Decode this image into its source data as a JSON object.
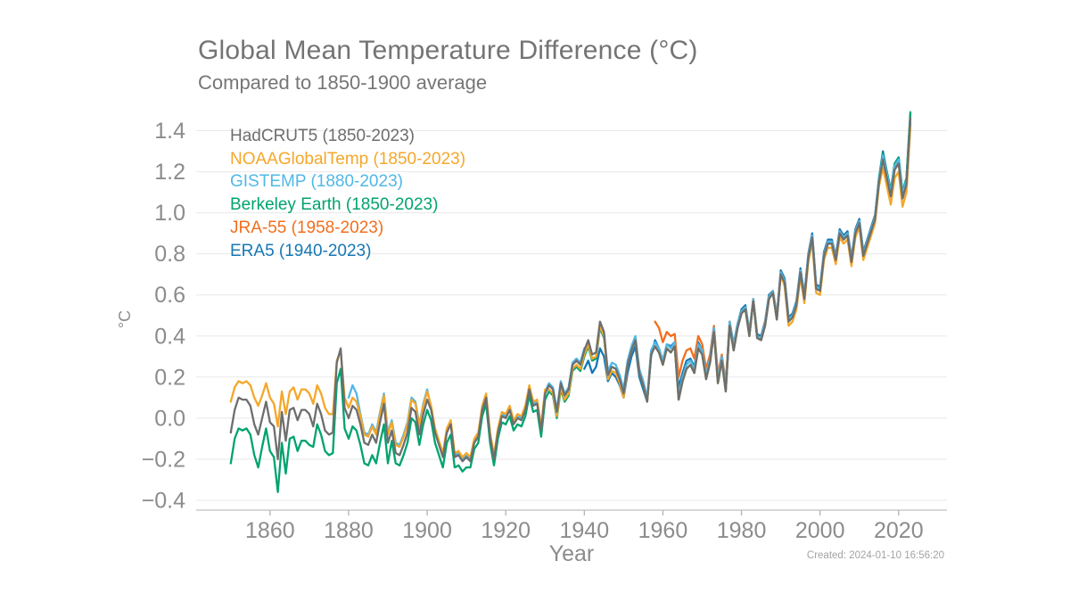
{
  "header": {
    "title": "Global Mean Temperature Difference (°C)",
    "subtitle": "Compared to 1850-1900 average"
  },
  "footer": {
    "created": "Created: 2024-01-10 16:56:20"
  },
  "colors": {
    "background": "#ffffff",
    "grid": "#e8e8e8",
    "axis_line": "#cccccc",
    "tick_mark": "#b3b3b3",
    "tick_label": "#8c8c8c",
    "title_text": "#747474",
    "created_text": "#a3a3a3"
  },
  "chart_data": {
    "type": "line",
    "title": "Global Mean Temperature Difference (°C)",
    "subtitle": "Compared to 1850-1900 average",
    "xlabel": "Year",
    "ylabel": "°C",
    "grid": true,
    "legend_position": "top-left",
    "xlim": [
      1841.2,
      2032.3
    ],
    "ylim": [
      -0.448,
      1.55
    ],
    "x_ticks": [
      1860,
      1880,
      1900,
      1920,
      1940,
      1960,
      1980,
      2000,
      2020
    ],
    "y_ticks": [
      1.4,
      1.2,
      1.0,
      0.8,
      0.6,
      0.4,
      0.2,
      0.0,
      -0.2,
      -0.4
    ],
    "y_tick_labels": [
      "1.4",
      "1.2",
      "1.0",
      "0.8",
      "0.6",
      "0.4",
      "0.2",
      "0.0",
      "−0.2",
      "−0.4"
    ],
    "series": [
      {
        "name": "HadCRUT5",
        "label": "HadCRUT5 (1850-2023)",
        "color": "#6E6E6E",
        "start_year": 1850,
        "values": [
          -0.07,
          0.04,
          0.1,
          0.09,
          0.09,
          0.06,
          -0.03,
          -0.08,
          0.0,
          0.08,
          -0.02,
          -0.04,
          -0.2,
          0.03,
          -0.11,
          0.04,
          0.05,
          -0.01,
          0.04,
          0.04,
          0.02,
          -0.04,
          0.07,
          0.02,
          -0.06,
          -0.08,
          -0.07,
          0.27,
          0.34,
          0.05,
          0.0,
          0.06,
          0.04,
          -0.03,
          -0.12,
          -0.13,
          -0.08,
          -0.12,
          -0.02,
          0.07,
          -0.12,
          -0.06,
          -0.17,
          -0.18,
          -0.13,
          -0.07,
          0.05,
          0.03,
          -0.08,
          0.02,
          0.09,
          0.04,
          -0.07,
          -0.13,
          -0.19,
          -0.07,
          -0.03,
          -0.19,
          -0.18,
          -0.21,
          -0.19,
          -0.21,
          -0.12,
          -0.09,
          0.04,
          0.1,
          -0.09,
          -0.2,
          -0.07,
          0.01,
          0.0,
          0.04,
          -0.03,
          0.0,
          -0.01,
          0.04,
          0.14,
          0.06,
          0.07,
          -0.06,
          0.12,
          0.16,
          0.14,
          0.03,
          0.17,
          0.11,
          0.14,
          0.26,
          0.28,
          0.26,
          0.33,
          0.38,
          0.31,
          0.32,
          0.47,
          0.42,
          0.21,
          0.25,
          0.24,
          0.19,
          0.12,
          0.26,
          0.33,
          0.38,
          0.22,
          0.16,
          0.08,
          0.31,
          0.35,
          0.32,
          0.26,
          0.34,
          0.32,
          0.35,
          0.09,
          0.18,
          0.24,
          0.26,
          0.22,
          0.34,
          0.31,
          0.19,
          0.27,
          0.42,
          0.17,
          0.28,
          0.13,
          0.45,
          0.33,
          0.44,
          0.51,
          0.53,
          0.4,
          0.57,
          0.39,
          0.38,
          0.45,
          0.58,
          0.61,
          0.48,
          0.7,
          0.66,
          0.47,
          0.49,
          0.55,
          0.71,
          0.58,
          0.78,
          0.88,
          0.63,
          0.62,
          0.79,
          0.85,
          0.85,
          0.77,
          0.9,
          0.87,
          0.89,
          0.76,
          0.9,
          0.95,
          0.79,
          0.85,
          0.91,
          0.97,
          1.15,
          1.26,
          1.17,
          1.08,
          1.21,
          1.24,
          1.07,
          1.14,
          1.46
        ]
      },
      {
        "name": "NOAAGlobalTemp",
        "label": "NOAAGlobalTemp (1850-2023)",
        "color": "#F4A72A",
        "start_year": 1850,
        "values": [
          0.08,
          0.15,
          0.18,
          0.17,
          0.18,
          0.16,
          0.1,
          0.06,
          0.11,
          0.17,
          0.1,
          0.07,
          -0.04,
          0.13,
          0.02,
          0.13,
          0.15,
          0.09,
          0.14,
          0.14,
          0.12,
          0.07,
          0.16,
          0.12,
          0.05,
          0.02,
          0.02,
          0.28,
          0.33,
          0.1,
          0.05,
          0.1,
          0.08,
          0.01,
          -0.08,
          -0.09,
          -0.04,
          -0.08,
          0.02,
          0.11,
          -0.08,
          -0.02,
          -0.13,
          -0.14,
          -0.09,
          -0.03,
          0.09,
          0.07,
          -0.04,
          0.06,
          0.13,
          0.06,
          -0.05,
          -0.11,
          -0.17,
          -0.05,
          -0.01,
          -0.17,
          -0.16,
          -0.19,
          -0.17,
          -0.19,
          -0.1,
          -0.07,
          0.06,
          0.12,
          -0.07,
          -0.18,
          -0.05,
          0.03,
          0.02,
          0.06,
          -0.01,
          0.02,
          0.01,
          0.06,
          0.16,
          0.08,
          0.09,
          -0.04,
          0.14,
          0.14,
          0.12,
          0.01,
          0.15,
          0.09,
          0.12,
          0.24,
          0.26,
          0.24,
          0.31,
          0.36,
          0.29,
          0.3,
          0.45,
          0.4,
          0.19,
          0.23,
          0.22,
          0.17,
          0.1,
          0.26,
          0.33,
          0.38,
          0.22,
          0.16,
          0.08,
          0.31,
          0.35,
          0.32,
          0.26,
          0.34,
          0.32,
          0.35,
          0.09,
          0.18,
          0.24,
          0.26,
          0.22,
          0.34,
          0.31,
          0.19,
          0.27,
          0.42,
          0.17,
          0.28,
          0.13,
          0.45,
          0.33,
          0.44,
          0.51,
          0.53,
          0.4,
          0.57,
          0.39,
          0.38,
          0.45,
          0.58,
          0.61,
          0.48,
          0.7,
          0.64,
          0.45,
          0.47,
          0.53,
          0.69,
          0.56,
          0.76,
          0.86,
          0.61,
          0.6,
          0.77,
          0.83,
          0.83,
          0.75,
          0.88,
          0.85,
          0.87,
          0.74,
          0.88,
          0.93,
          0.77,
          0.83,
          0.89,
          0.95,
          1.13,
          1.22,
          1.13,
          1.04,
          1.17,
          1.2,
          1.03,
          1.1,
          1.42
        ]
      },
      {
        "name": "GISTEMP",
        "label": "GISTEMP (1880-2023)",
        "color": "#4FB8E7",
        "start_year": 1880,
        "values": [
          0.1,
          0.16,
          0.12,
          0.02,
          -0.07,
          -0.08,
          -0.03,
          -0.07,
          0.03,
          0.12,
          -0.07,
          -0.01,
          -0.12,
          -0.13,
          -0.08,
          -0.02,
          0.1,
          0.08,
          -0.03,
          0.07,
          0.14,
          0.05,
          -0.06,
          -0.12,
          -0.18,
          -0.06,
          -0.02,
          -0.18,
          -0.17,
          -0.2,
          -0.18,
          -0.2,
          -0.11,
          -0.08,
          0.05,
          0.11,
          -0.08,
          -0.19,
          -0.06,
          0.02,
          0.01,
          0.05,
          -0.02,
          0.01,
          0.0,
          0.05,
          0.15,
          0.07,
          0.08,
          -0.05,
          0.13,
          0.17,
          0.15,
          0.04,
          0.18,
          0.12,
          0.15,
          0.27,
          0.29,
          0.27,
          0.34,
          0.36,
          0.29,
          0.3,
          0.45,
          0.4,
          0.23,
          0.27,
          0.26,
          0.21,
          0.14,
          0.28,
          0.35,
          0.4,
          0.24,
          0.18,
          0.1,
          0.33,
          0.37,
          0.34,
          0.28,
          0.36,
          0.34,
          0.37,
          0.11,
          0.2,
          0.26,
          0.28,
          0.24,
          0.36,
          0.33,
          0.21,
          0.29,
          0.44,
          0.19,
          0.3,
          0.15,
          0.47,
          0.35,
          0.46,
          0.52,
          0.54,
          0.41,
          0.58,
          0.4,
          0.39,
          0.46,
          0.59,
          0.62,
          0.49,
          0.71,
          0.67,
          0.48,
          0.5,
          0.56,
          0.72,
          0.59,
          0.79,
          0.89,
          0.64,
          0.63,
          0.8,
          0.86,
          0.86,
          0.78,
          0.91,
          0.88,
          0.9,
          0.77,
          0.91,
          0.96,
          0.8,
          0.86,
          0.92,
          0.98,
          1.16,
          1.28,
          1.19,
          1.1,
          1.23,
          1.26,
          1.09,
          1.16,
          1.44
        ]
      },
      {
        "name": "Berkeley Earth",
        "label": "Berkeley Earth (1850-2023)",
        "color": "#00A36F",
        "start_year": 1850,
        "values": [
          -0.22,
          -0.1,
          -0.05,
          -0.06,
          -0.05,
          -0.08,
          -0.18,
          -0.24,
          -0.14,
          -0.05,
          -0.16,
          -0.19,
          -0.36,
          -0.12,
          -0.27,
          -0.1,
          -0.09,
          -0.16,
          -0.11,
          -0.11,
          -0.13,
          -0.14,
          -0.03,
          -0.08,
          -0.16,
          -0.18,
          -0.17,
          0.17,
          0.24,
          -0.05,
          -0.1,
          -0.04,
          -0.06,
          -0.13,
          -0.22,
          -0.23,
          -0.18,
          -0.22,
          -0.12,
          -0.03,
          -0.22,
          -0.11,
          -0.22,
          -0.23,
          -0.18,
          -0.12,
          0.0,
          -0.02,
          -0.13,
          -0.03,
          0.04,
          -0.01,
          -0.12,
          -0.18,
          -0.24,
          -0.12,
          -0.08,
          -0.24,
          -0.23,
          -0.26,
          -0.24,
          -0.24,
          -0.15,
          -0.12,
          0.01,
          0.07,
          -0.12,
          -0.23,
          -0.1,
          -0.02,
          -0.03,
          0.01,
          -0.06,
          -0.03,
          -0.04,
          0.01,
          0.11,
          0.03,
          0.04,
          -0.09,
          0.09,
          0.13,
          0.11,
          0.0,
          0.14,
          0.08,
          0.11,
          0.23,
          0.25,
          0.23,
          0.3,
          0.35,
          0.28,
          0.29,
          0.44,
          0.39,
          0.21,
          0.25,
          0.24,
          0.19,
          0.12,
          0.26,
          0.33,
          0.38,
          0.22,
          0.16,
          0.08,
          0.31,
          0.35,
          0.32,
          0.26,
          0.34,
          0.32,
          0.35,
          0.09,
          0.18,
          0.24,
          0.26,
          0.22,
          0.34,
          0.31,
          0.19,
          0.27,
          0.42,
          0.17,
          0.28,
          0.13,
          0.45,
          0.33,
          0.44,
          0.51,
          0.53,
          0.4,
          0.57,
          0.39,
          0.38,
          0.45,
          0.58,
          0.61,
          0.48,
          0.7,
          0.66,
          0.47,
          0.49,
          0.55,
          0.71,
          0.58,
          0.78,
          0.88,
          0.63,
          0.62,
          0.79,
          0.85,
          0.85,
          0.77,
          0.9,
          0.87,
          0.89,
          0.76,
          0.9,
          0.95,
          0.79,
          0.85,
          0.91,
          0.97,
          1.17,
          1.29,
          1.2,
          1.11,
          1.24,
          1.27,
          1.1,
          1.17,
          1.49
        ]
      },
      {
        "name": "JRA-55",
        "label": "JRA-55 (1958-2023)",
        "color": "#F26E1D",
        "start_year": 1958,
        "values": [
          0.47,
          0.44,
          0.37,
          0.42,
          0.4,
          0.41,
          0.2,
          0.28,
          0.33,
          0.34,
          0.29,
          0.4,
          0.36,
          0.24,
          0.31,
          0.45,
          0.21,
          0.31,
          0.17,
          0.47,
          0.35,
          0.45,
          0.52,
          0.54,
          0.41,
          0.58,
          0.4,
          0.39,
          0.46,
          0.59,
          0.62,
          0.49,
          0.71,
          0.67,
          0.48,
          0.5,
          0.56,
          0.72,
          0.59,
          0.79,
          0.89,
          0.64,
          0.63,
          0.8,
          0.86,
          0.86,
          0.78,
          0.91,
          0.88,
          0.9,
          0.77,
          0.91,
          0.96,
          0.8,
          0.86,
          0.92,
          0.98,
          1.16,
          1.27,
          1.18,
          1.09,
          1.22,
          1.25,
          1.08,
          1.15,
          1.43
        ]
      },
      {
        "name": "ERA5",
        "label": "ERA5 (1940-2023)",
        "color": "#1678B4",
        "start_year": 1940,
        "values": [
          0.24,
          0.28,
          0.22,
          0.25,
          0.34,
          0.3,
          0.18,
          0.22,
          0.2,
          0.16,
          0.1,
          0.22,
          0.3,
          0.35,
          0.2,
          0.14,
          0.08,
          0.3,
          0.38,
          0.34,
          0.28,
          0.36,
          0.35,
          0.37,
          0.15,
          0.22,
          0.28,
          0.29,
          0.25,
          0.37,
          0.33,
          0.22,
          0.3,
          0.44,
          0.2,
          0.3,
          0.16,
          0.47,
          0.36,
          0.46,
          0.53,
          0.55,
          0.42,
          0.58,
          0.41,
          0.4,
          0.47,
          0.6,
          0.62,
          0.5,
          0.72,
          0.68,
          0.49,
          0.51,
          0.57,
          0.73,
          0.6,
          0.8,
          0.9,
          0.65,
          0.64,
          0.81,
          0.87,
          0.87,
          0.79,
          0.92,
          0.89,
          0.91,
          0.78,
          0.92,
          0.97,
          0.81,
          0.87,
          0.93,
          0.99,
          1.17,
          1.3,
          1.2,
          1.11,
          1.24,
          1.27,
          1.1,
          1.17,
          1.48
        ]
      }
    ]
  }
}
